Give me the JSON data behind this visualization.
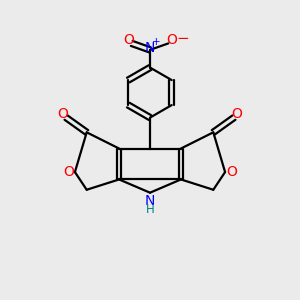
{
  "background_color": "#ebebeb",
  "bond_color": "#000000",
  "n_color": "#0000ff",
  "o_color": "#ff0000",
  "h_color": "#008080",
  "figsize": [
    3.0,
    3.0
  ],
  "dpi": 100,
  "xlim": [
    0,
    10
  ],
  "ylim": [
    0,
    10
  ]
}
